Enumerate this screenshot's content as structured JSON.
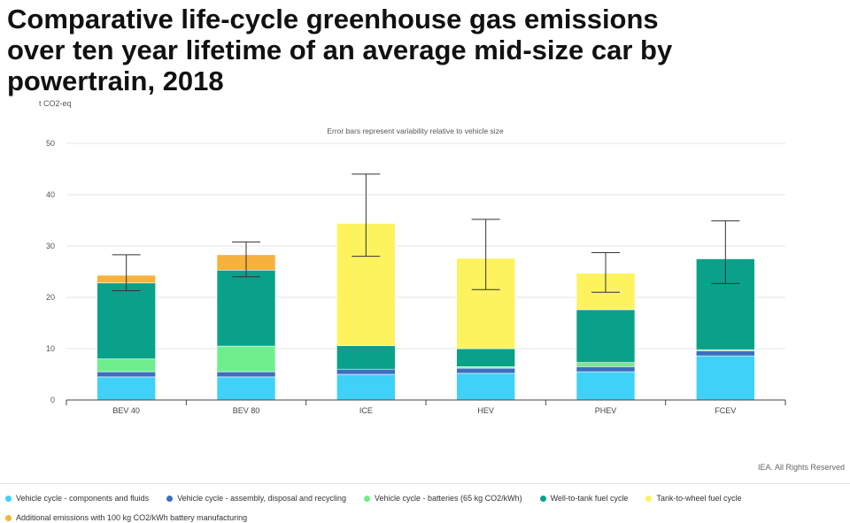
{
  "title": "Comparative life-cycle greenhouse gas emissions over ten year lifetime of an average mid-size car by powertrain, 2018",
  "credit": "IEA. All Rights Reserved",
  "chart_data": {
    "type": "bar",
    "stacked": true,
    "title": "Comparative life-cycle greenhouse gas emissions over ten year lifetime of an average mid-size car by powertrain, 2018",
    "ylabel": "t CO2-eq",
    "annotation": "Error bars represent variability relative to vehicle size",
    "ylim": [
      0,
      50
    ],
    "yticks": [
      0,
      10,
      20,
      30,
      40,
      50
    ],
    "grid": true,
    "legend_position": "bottom",
    "categories": [
      "BEV 40",
      "BEV 80",
      "ICE",
      "HEV",
      "PHEV",
      "FCEV"
    ],
    "series": [
      {
        "name": "Vehicle cycle - components and fluids",
        "color": "#3fd1f7",
        "values": [
          4.5,
          4.5,
          5.0,
          5.2,
          5.5,
          8.6
        ]
      },
      {
        "name": "Vehicle cycle - assembly, disposal and recycling",
        "color": "#3b6fc0",
        "values": [
          1.0,
          1.0,
          1.0,
          1.0,
          1.0,
          1.0
        ]
      },
      {
        "name": "Vehicle cycle - batteries (65 kg CO2/kWh)",
        "color": "#6fee8e",
        "values": [
          2.5,
          5.0,
          0,
          0.3,
          0.8,
          0.2
        ]
      },
      {
        "name": "Well-to-tank fuel cycle",
        "color": "#0aa18a",
        "values": [
          14.8,
          14.8,
          4.6,
          3.5,
          10.3,
          17.7
        ]
      },
      {
        "name": "Tank-to-wheel fuel cycle",
        "color": "#fcf35e",
        "values": [
          0,
          0,
          23.8,
          17.6,
          7.1,
          0
        ]
      },
      {
        "name": "Additional emissions with 100 kg CO2/kWh battery manufacturing",
        "color": "#f6b23c",
        "values": [
          1.5,
          3.0,
          0,
          0,
          0,
          0
        ]
      }
    ],
    "error_bars": [
      {
        "category": "BEV 40",
        "low": 21.3,
        "high": 28.3
      },
      {
        "category": "BEV 80",
        "low": 24.0,
        "high": 30.8
      },
      {
        "category": "ICE",
        "low": 28.0,
        "high": 44.0
      },
      {
        "category": "HEV",
        "low": 21.5,
        "high": 35.2
      },
      {
        "category": "PHEV",
        "low": 21.0,
        "high": 28.7
      },
      {
        "category": "FCEV",
        "low": 22.7,
        "high": 34.9
      }
    ]
  }
}
